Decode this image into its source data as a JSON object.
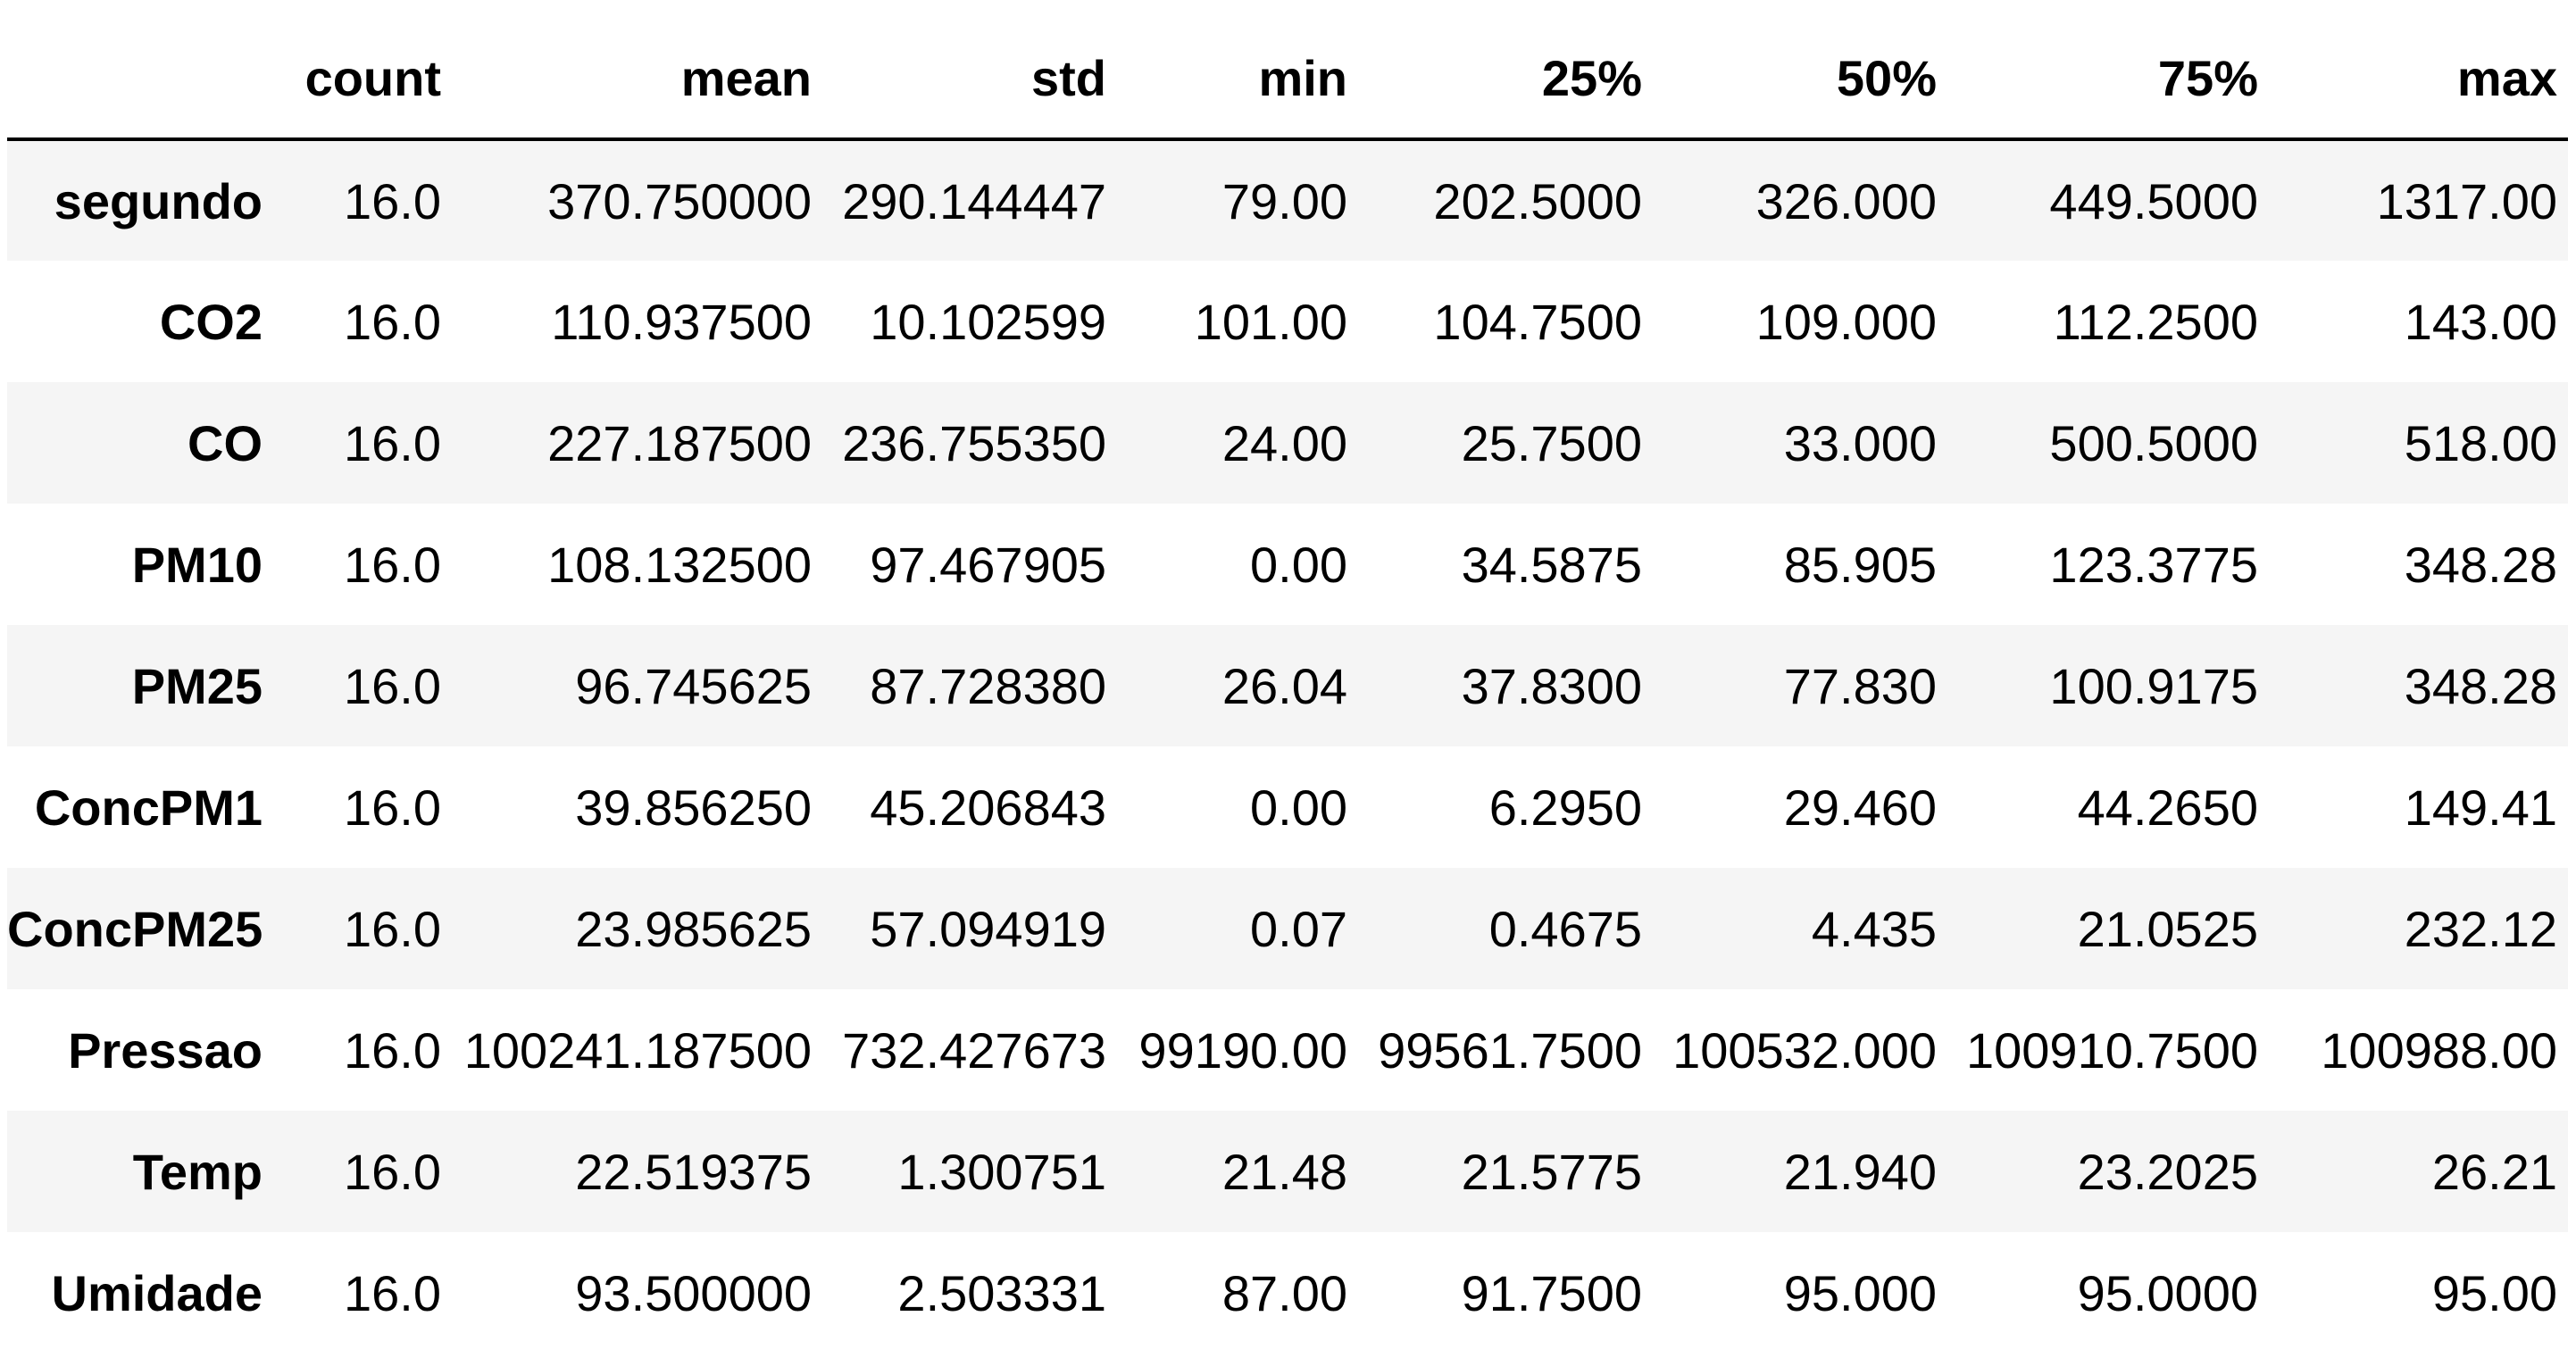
{
  "table": {
    "columns": [
      "",
      "count",
      "mean",
      "std",
      "min",
      "25%",
      "50%",
      "75%",
      "max"
    ],
    "rows": [
      {
        "label": "segundo",
        "values": [
          "16.0",
          "370.750000",
          "290.144447",
          "79.00",
          "202.5000",
          "326.000",
          "449.5000",
          "1317.00"
        ]
      },
      {
        "label": "CO2",
        "values": [
          "16.0",
          "110.937500",
          "10.102599",
          "101.00",
          "104.7500",
          "109.000",
          "112.2500",
          "143.00"
        ]
      },
      {
        "label": "CO",
        "values": [
          "16.0",
          "227.187500",
          "236.755350",
          "24.00",
          "25.7500",
          "33.000",
          "500.5000",
          "518.00"
        ]
      },
      {
        "label": "PM10",
        "values": [
          "16.0",
          "108.132500",
          "97.467905",
          "0.00",
          "34.5875",
          "85.905",
          "123.3775",
          "348.28"
        ]
      },
      {
        "label": "PM25",
        "values": [
          "16.0",
          "96.745625",
          "87.728380",
          "26.04",
          "37.8300",
          "77.830",
          "100.9175",
          "348.28"
        ]
      },
      {
        "label": "ConcPM1",
        "values": [
          "16.0",
          "39.856250",
          "45.206843",
          "0.00",
          "6.2950",
          "29.460",
          "44.2650",
          "149.41"
        ]
      },
      {
        "label": "ConcPM25",
        "values": [
          "16.0",
          "23.985625",
          "57.094919",
          "0.07",
          "0.4675",
          "4.435",
          "21.0525",
          "232.12"
        ]
      },
      {
        "label": "Pressao",
        "values": [
          "16.0",
          "100241.187500",
          "732.427673",
          "99190.00",
          "99561.7500",
          "100532.000",
          "100910.7500",
          "100988.00"
        ]
      },
      {
        "label": "Temp",
        "values": [
          "16.0",
          "22.519375",
          "1.300751",
          "21.48",
          "21.5775",
          "21.940",
          "23.2025",
          "26.21"
        ]
      },
      {
        "label": "Umidade",
        "values": [
          "16.0",
          "93.500000",
          "2.503331",
          "87.00",
          "91.7500",
          "95.000",
          "95.0000",
          "95.00"
        ]
      }
    ]
  },
  "colors": {
    "stripe": "#f5f5f5",
    "background": "#ffffff",
    "text": "#000000",
    "header_rule": "#000000"
  }
}
